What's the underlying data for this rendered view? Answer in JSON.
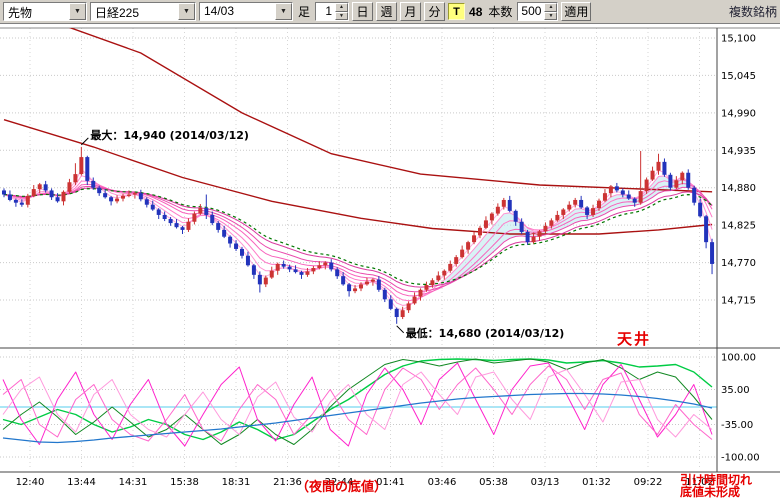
{
  "toolbar": {
    "instrument": "先物",
    "symbol": "日経225",
    "contract": "14/03",
    "bar_label": "足",
    "interval_value": "1",
    "period_buttons": [
      "日",
      "週",
      "月",
      "分"
    ],
    "tick_toggle": "T",
    "tick_count": "48",
    "bars_label": "本数",
    "bars_value": "500",
    "apply_label": "適用",
    "right_label": "複数銘柄"
  },
  "chart_data": {
    "type": "candlestick",
    "main_axis": {
      "top_value": 15100,
      "bottom_value": 14715,
      "labels": [
        {
          "text": "15,100",
          "value": 15100
        },
        {
          "text": "15,045",
          "value": 15045
        },
        {
          "text": "14,990",
          "value": 14990
        },
        {
          "text": "14,935",
          "value": 14935
        },
        {
          "text": "14,880",
          "value": 14880
        },
        {
          "text": "14,825",
          "value": 14825
        },
        {
          "text": "14,770",
          "value": 14770
        },
        {
          "text": "14,715",
          "value": 14715
        }
      ]
    },
    "lower_axis": {
      "labels": [
        {
          "text": "100.00",
          "value": 100
        },
        {
          "text": "35.00",
          "value": 35
        },
        {
          "text": "-35.00",
          "value": -35
        },
        {
          "text": "-100.00",
          "value": -100
        }
      ],
      "zero_line_color": "#55ccee"
    },
    "x_labels": [
      "12:40",
      "13:44",
      "14:31",
      "15:38",
      "18:31",
      "21:36",
      "22:44",
      "01:41",
      "03:46",
      "05:38",
      "03/13",
      "01:32",
      "09:22",
      "11:02"
    ],
    "candles": {
      "first_open": 14876,
      "up_color": "#cc3333",
      "down_color": "#2233bb",
      "closes": [
        14870,
        14862,
        14858,
        14855,
        14868,
        14878,
        14885,
        14876,
        14866,
        14860,
        14874,
        14888,
        14900,
        14925,
        14890,
        14880,
        14872,
        14866,
        14860,
        14864,
        14868,
        14870,
        14872,
        14863,
        14855,
        14848,
        14840,
        14834,
        14828,
        14822,
        14818,
        14830,
        14842,
        14850,
        14840,
        14828,
        14818,
        14808,
        14798,
        14790,
        14780,
        14766,
        14752,
        14738,
        14748,
        14758,
        14768,
        14764,
        14760,
        14756,
        14752,
        14757,
        14762,
        14766,
        14770,
        14760,
        14750,
        14738,
        14728,
        14732,
        14738,
        14742,
        14745,
        14730,
        14716,
        14702,
        14690,
        14700,
        14710,
        14720,
        14730,
        14737,
        14744,
        14751,
        14758,
        14768,
        14778,
        14789,
        14800,
        14810,
        14821,
        14832,
        14842,
        14852,
        14862,
        14846,
        14830,
        14815,
        14800,
        14808,
        14816,
        14824,
        14832,
        14840,
        14848,
        14855,
        14862,
        14851,
        14840,
        14850,
        14861,
        14872,
        14882,
        14876,
        14870,
        14864,
        14858,
        14875,
        14892,
        14905,
        14918,
        14899,
        14880,
        14891,
        14902,
        14880,
        14858,
        14838,
        14800,
        14768
      ],
      "high_overrides": {
        "12": 14916,
        "13": 14940,
        "34": 14870,
        "107": 14934,
        "110": 14930
      },
      "low_overrides": {
        "43": 14726,
        "58": 14720,
        "66": 14680,
        "118": 14791,
        "119": 14753
      }
    },
    "ribbon": {
      "periods": [
        3,
        5,
        8,
        12,
        16,
        21
      ],
      "colors": [
        "#ffaadd",
        "#ff92d2",
        "#ff7ac8",
        "#f862bc",
        "#ea4cae",
        "#d93aa0"
      ]
    },
    "green_ma": {
      "period": 24,
      "color": "#007700",
      "dash": "3,3"
    },
    "cloud": {
      "fast_period": 5,
      "slow_period": 16,
      "from": 74,
      "to": 117,
      "color": "#c0e9f0"
    },
    "ma_lines": [
      {
        "color": "#aa1111",
        "width": 1.4,
        "points": [
          [
            0,
            15150
          ],
          [
            23,
            15078
          ],
          [
            40,
            14990
          ],
          [
            55,
            14930
          ],
          [
            70,
            14900
          ],
          [
            90,
            14884
          ],
          [
            119,
            14874
          ]
        ]
      },
      {
        "color": "#aa1111",
        "width": 1.4,
        "points": [
          [
            0,
            14980
          ],
          [
            15,
            14940
          ],
          [
            30,
            14895
          ],
          [
            45,
            14860
          ],
          [
            60,
            14835
          ],
          [
            72,
            14820
          ],
          [
            85,
            14812
          ],
          [
            100,
            14812
          ],
          [
            110,
            14818
          ],
          [
            119,
            14826
          ]
        ]
      }
    ],
    "oscillator": {
      "series": [
        {
          "name": "rci-long-green",
          "color": "#00cc44",
          "width": 1.4,
          "values": [
            -25,
            -35,
            -20,
            -5,
            -15,
            -35,
            -50,
            -40,
            -25,
            -35,
            -55,
            -65,
            -50,
            -30,
            -45,
            -65,
            -55,
            -30,
            -5,
            15,
            40,
            65,
            82,
            92,
            95,
            96,
            95,
            93,
            95,
            96,
            94,
            88,
            90,
            93,
            88,
            80,
            82,
            85,
            70,
            40
          ]
        },
        {
          "name": "rci-mid-green",
          "color": "#118822",
          "width": 1,
          "values": [
            -45,
            -15,
            10,
            -20,
            -55,
            -30,
            0,
            -30,
            -60,
            -45,
            -15,
            -45,
            -75,
            -55,
            -25,
            -55,
            -75,
            -45,
            0,
            35,
            60,
            85,
            95,
            90,
            82,
            90,
            96,
            88,
            92,
            96,
            90,
            75,
            88,
            95,
            78,
            55,
            70,
            60,
            20,
            -25
          ]
        },
        {
          "name": "rci-short-magenta",
          "color": "#ff22cc",
          "width": 1,
          "values": [
            55,
            -25,
            -75,
            15,
            70,
            -15,
            -65,
            5,
            55,
            -35,
            -78,
            -15,
            45,
            80,
            -25,
            -68,
            5,
            60,
            -45,
            -78,
            25,
            78,
            35,
            -35,
            55,
            88,
            15,
            -55,
            35,
            82,
            88,
            25,
            -45,
            45,
            85,
            15,
            -60,
            -15,
            45,
            -55
          ]
        },
        {
          "name": "rci-mid-magenta",
          "color": "#ff66cc",
          "width": 1,
          "values": [
            25,
            55,
            -35,
            -60,
            15,
            45,
            -25,
            -55,
            -68,
            -25,
            25,
            -45,
            -68,
            -5,
            45,
            15,
            -55,
            -15,
            35,
            -25,
            -55,
            35,
            78,
            55,
            -5,
            45,
            78,
            35,
            -15,
            45,
            82,
            55,
            -5,
            55,
            68,
            -15,
            -55,
            5,
            -35,
            -65
          ]
        },
        {
          "name": "rci-soft-magenta",
          "color": "#ff9add",
          "width": 1,
          "values": [
            -15,
            35,
            60,
            -15,
            -50,
            25,
            55,
            -15,
            -45,
            -60,
            -15,
            30,
            -25,
            -55,
            20,
            50,
            -20,
            -50,
            10,
            45,
            -15,
            -45,
            45,
            70,
            25,
            -15,
            60,
            70,
            15,
            -25,
            60,
            75,
            25,
            -30,
            50,
            55,
            -25,
            -60,
            -15,
            -45
          ]
        },
        {
          "name": "slow-blue-line",
          "color": "#2277cc",
          "width": 1.3,
          "values": [
            -62,
            -66,
            -70,
            -71,
            -69,
            -66,
            -62,
            -59,
            -56,
            -53,
            -50,
            -47,
            -44,
            -40,
            -36,
            -32,
            -27,
            -22,
            -17,
            -12,
            -7,
            -2,
            3,
            8,
            12,
            16,
            19,
            21,
            23,
            25,
            26,
            27,
            27,
            26,
            24,
            21,
            17,
            12,
            6,
            -2
          ]
        }
      ]
    },
    "annotations": {
      "max_label": {
        "text": "最大：14,940 (2014/03/12)",
        "bar": 13,
        "price": 14940
      },
      "min_label": {
        "text": "最低：14,680 (2014/03/12)",
        "bar": 66,
        "price": 14680
      },
      "ceiling": {
        "text": "天井",
        "color": "#e60000"
      },
      "night_bottom": {
        "text": "（夜間の底値）",
        "color": "#e60000"
      },
      "close_cut": {
        "line1": "引け時間切れ",
        "line2": "底値未形成",
        "color": "#e60000"
      }
    }
  }
}
